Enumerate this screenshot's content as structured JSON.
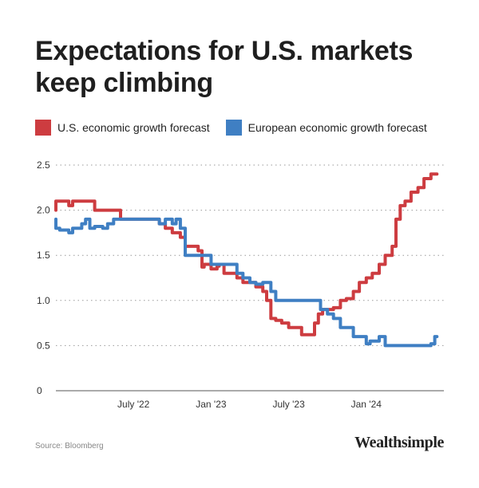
{
  "title": "Expectations for U.S. markets keep climbing",
  "source": "Source: Bloomberg",
  "brand": "Wealthsimple",
  "chart_data": {
    "type": "line",
    "title": "Expectations for U.S. markets keep climbing",
    "xlabel": "",
    "ylabel": "",
    "ylim": [
      0,
      2.5
    ],
    "yticks": [
      0,
      0.5,
      1.0,
      1.5,
      2.0,
      2.5
    ],
    "ytick_labels": [
      "0",
      "0.5",
      "1.0",
      "1.5",
      "2.0",
      "2.5"
    ],
    "xlim": [
      "2022-01",
      "2024-07"
    ],
    "xticks": [
      "2022-07",
      "2023-01",
      "2023-07",
      "2024-01"
    ],
    "xtick_labels": [
      "July '22",
      "Jan '23",
      "July '23",
      "Jan '24"
    ],
    "grid": "horizontal dotted",
    "legend_position": "top-left",
    "series": [
      {
        "name": "U.S. economic growth forecast",
        "color": "#cd3c40",
        "points": [
          [
            "2022-01",
            2.0
          ],
          [
            "2022-01-15",
            2.1
          ],
          [
            "2022-02",
            2.1
          ],
          [
            "2022-02-10",
            2.05
          ],
          [
            "2022-02-20",
            2.1
          ],
          [
            "2022-03",
            2.1
          ],
          [
            "2022-04",
            2.1
          ],
          [
            "2022-04-15",
            2.0
          ],
          [
            "2022-05",
            2.0
          ],
          [
            "2022-06",
            2.0
          ],
          [
            "2022-06-10",
            1.9
          ],
          [
            "2022-07",
            1.9
          ],
          [
            "2022-08",
            1.9
          ],
          [
            "2022-09",
            1.9
          ],
          [
            "2022-09-15",
            1.85
          ],
          [
            "2022-10",
            1.8
          ],
          [
            "2022-10-20",
            1.75
          ],
          [
            "2022-11",
            1.7
          ],
          [
            "2022-11-15",
            1.6
          ],
          [
            "2022-12",
            1.6
          ],
          [
            "2022-12-10",
            1.55
          ],
          [
            "2022-12-15",
            1.37
          ],
          [
            "2022-12-25",
            1.4
          ],
          [
            "2023-01",
            1.4
          ],
          [
            "2023-01-15",
            1.35
          ],
          [
            "2023-01-20",
            1.38
          ],
          [
            "2023-02",
            1.4
          ],
          [
            "2023-02-15",
            1.3
          ],
          [
            "2023-03",
            1.3
          ],
          [
            "2023-03-15",
            1.25
          ],
          [
            "2023-04",
            1.2
          ],
          [
            "2023-04-15",
            1.2
          ],
          [
            "2023-05",
            1.15
          ],
          [
            "2023-05-10",
            1.1
          ],
          [
            "2023-05-20",
            1.0
          ],
          [
            "2023-06",
            0.8
          ],
          [
            "2023-06-15",
            0.78
          ],
          [
            "2023-07",
            0.75
          ],
          [
            "2023-07-15",
            0.7
          ],
          [
            "2023-08",
            0.7
          ],
          [
            "2023-08-15",
            0.62
          ],
          [
            "2023-09",
            0.62
          ],
          [
            "2023-09-10",
            0.75
          ],
          [
            "2023-09-20",
            0.85
          ],
          [
            "2023-10",
            0.9
          ],
          [
            "2023-10-15",
            0.9
          ],
          [
            "2023-11",
            0.92
          ],
          [
            "2023-11-15",
            1.0
          ],
          [
            "2023-12",
            1.02
          ],
          [
            "2023-12-15",
            1.1
          ],
          [
            "2024-01",
            1.2
          ],
          [
            "2024-01-15",
            1.25
          ],
          [
            "2024-02",
            1.3
          ],
          [
            "2024-02-15",
            1.4
          ],
          [
            "2024-03",
            1.5
          ],
          [
            "2024-03-10",
            1.6
          ],
          [
            "2024-03-20",
            1.9
          ],
          [
            "2024-04",
            2.05
          ],
          [
            "2024-04-15",
            2.1
          ],
          [
            "2024-05",
            2.2
          ],
          [
            "2024-05-15",
            2.25
          ],
          [
            "2024-06",
            2.35
          ],
          [
            "2024-06-15",
            2.4
          ]
        ]
      },
      {
        "name": "European economic growth forecast",
        "color": "#3f7fc3",
        "points": [
          [
            "2022-01",
            1.9
          ],
          [
            "2022-01-10",
            1.8
          ],
          [
            "2022-02",
            1.78
          ],
          [
            "2022-02-10",
            1.75
          ],
          [
            "2022-03",
            1.8
          ],
          [
            "2022-03-10",
            1.85
          ],
          [
            "2022-03-20",
            1.9
          ],
          [
            "2022-04",
            1.8
          ],
          [
            "2022-04-20",
            1.82
          ],
          [
            "2022-05",
            1.8
          ],
          [
            "2022-05-15",
            1.85
          ],
          [
            "2022-06",
            1.9
          ],
          [
            "2022-07",
            1.9
          ],
          [
            "2022-08",
            1.9
          ],
          [
            "2022-09",
            1.9
          ],
          [
            "2022-09-15",
            1.85
          ],
          [
            "2022-10",
            1.9
          ],
          [
            "2022-10-10",
            1.85
          ],
          [
            "2022-10-20",
            1.9
          ],
          [
            "2022-11",
            1.8
          ],
          [
            "2022-11-10",
            1.5
          ],
          [
            "2022-12",
            1.5
          ],
          [
            "2023-01",
            1.5
          ],
          [
            "2023-01-15",
            1.4
          ],
          [
            "2023-02",
            1.4
          ],
          [
            "2023-03",
            1.4
          ],
          [
            "2023-03-15",
            1.3
          ],
          [
            "2023-04",
            1.25
          ],
          [
            "2023-04-15",
            1.2
          ],
          [
            "2023-05",
            1.18
          ],
          [
            "2023-05-20",
            1.2
          ],
          [
            "2023-06",
            1.1
          ],
          [
            "2023-06-10",
            1.0
          ],
          [
            "2023-07",
            1.0
          ],
          [
            "2023-08",
            1.0
          ],
          [
            "2023-09",
            1.0
          ],
          [
            "2023-09-15",
            1.0
          ],
          [
            "2023-10",
            0.9
          ],
          [
            "2023-10-15",
            0.85
          ],
          [
            "2023-11",
            0.8
          ],
          [
            "2023-11-15",
            0.7
          ],
          [
            "2023-12",
            0.7
          ],
          [
            "2023-12-15",
            0.6
          ],
          [
            "2024-01",
            0.6
          ],
          [
            "2024-01-10",
            0.52
          ],
          [
            "2024-01-20",
            0.55
          ],
          [
            "2024-02",
            0.55
          ],
          [
            "2024-02-15",
            0.6
          ],
          [
            "2024-02-25",
            0.5
          ],
          [
            "2024-03",
            0.5
          ],
          [
            "2024-04",
            0.5
          ],
          [
            "2024-05",
            0.5
          ],
          [
            "2024-06",
            0.5
          ],
          [
            "2024-06-10",
            0.52
          ],
          [
            "2024-06-15",
            0.6
          ]
        ]
      }
    ]
  }
}
